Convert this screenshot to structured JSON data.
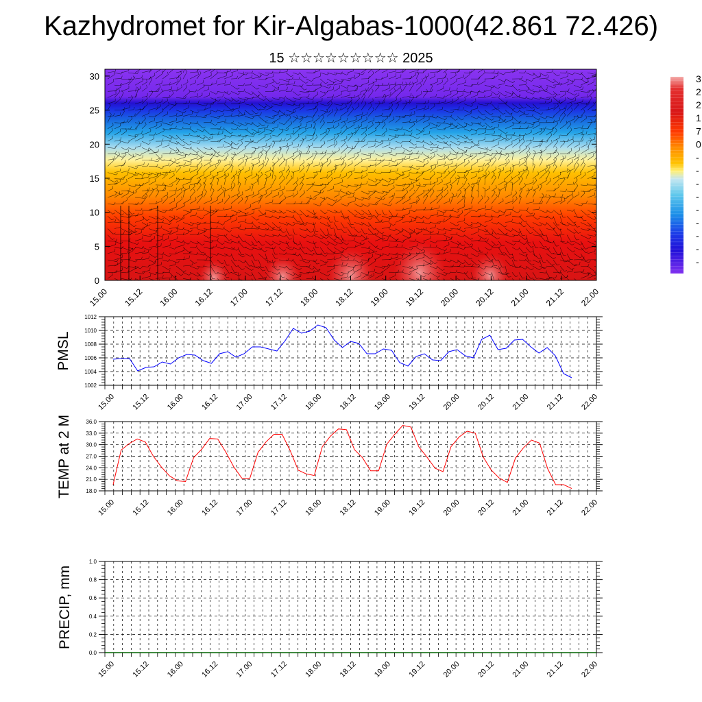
{
  "title": "Kazhydromet for Kir-Algabas-1000(42.861 72.426)",
  "subtitle": "15 ☆☆☆☆☆☆☆☆☆ 2025",
  "colors": {
    "pmsl_line": "#0000ff",
    "temp_line": "#ff0000",
    "precip_line": "#006400",
    "grid": "#000000"
  },
  "chart_data": [
    {
      "type": "heatmap",
      "name": "cross-section",
      "x_tick_labels": [
        "15.00",
        "15.12",
        "16.00",
        "16.12",
        "17.00",
        "17.12",
        "18.00",
        "18.12",
        "19.00",
        "19.12",
        "20.00",
        "20.12",
        "21.00",
        "21.12",
        "22.00"
      ],
      "y_ticks": [
        0,
        5,
        10,
        15,
        20,
        25,
        30
      ],
      "ylim": [
        0,
        31
      ],
      "colorbar_labels": [
        "3",
        "2",
        "2",
        "1",
        "7",
        "0",
        "-",
        "-",
        "-",
        "-",
        "-",
        "-",
        "-",
        "-",
        "-"
      ],
      "colorbar_colors": [
        "#f4aaa8",
        "#e43030",
        "#d61818",
        "#e80e0e",
        "#ff3a00",
        "#ff7a00",
        "#ffb300",
        "#fff07a",
        "#c4e6f0",
        "#5fc8ec",
        "#1aa0e8",
        "#1466e0",
        "#1f2ee8",
        "#2010d8",
        "#6a20e8",
        "#8030f0"
      ],
      "wind_barbs": true
    },
    {
      "type": "line",
      "ylabel": "PMSL",
      "x_tick_labels": [
        "15.00",
        "15.12",
        "16.00",
        "16.12",
        "17.00",
        "17.12",
        "18.00",
        "18.12",
        "19.00",
        "19.12",
        "20.00",
        "20.12",
        "21.00",
        "21.12",
        "22.00"
      ],
      "y_ticks": [
        "1002",
        "1004",
        "1006",
        "1008",
        "1010",
        "1012"
      ],
      "ylim": [
        1002,
        1012
      ],
      "series": [
        {
          "values": [
            1005.8,
            1005.9,
            1005.9,
            1004.1,
            1004.6,
            1004.7,
            1005.4,
            1005.1,
            1006.0,
            1006.5,
            1006.4,
            1005.6,
            1005.2,
            1006.6,
            1006.9,
            1006.1,
            1006.6,
            1007.6,
            1007.6,
            1007.3,
            1007.0,
            1008.5,
            1010.3,
            1009.6,
            1009.9,
            1010.8,
            1010.4,
            1008.6,
            1007.5,
            1008.4,
            1008.1,
            1006.6,
            1006.6,
            1007.3,
            1007.1,
            1005.3,
            1004.8,
            1006.2,
            1006.6,
            1005.7,
            1005.6,
            1006.9,
            1007.2,
            1006.3,
            1006.0,
            1008.7,
            1009.3,
            1007.2,
            1007.4,
            1008.6,
            1008.7,
            1007.6,
            1006.7,
            1007.5,
            1006.3,
            1003.7,
            1003.1
          ]
        }
      ]
    },
    {
      "type": "line",
      "ylabel": "TEMP at 2 M",
      "x_tick_labels": [
        "15.00",
        "15.12",
        "16.00",
        "16.12",
        "17.00",
        "17.12",
        "18.00",
        "18.12",
        "19.00",
        "19.12",
        "20.00",
        "20.12",
        "21.00",
        "21.12",
        "22.00"
      ],
      "y_ticks": [
        "18.0",
        "21.0",
        "24.0",
        "27.0",
        "30.0",
        "33.0",
        "36.0"
      ],
      "ylim": [
        18,
        36
      ],
      "series": [
        {
          "values": [
            19.6,
            28.6,
            30.3,
            31.5,
            30.7,
            27.0,
            24.2,
            21.9,
            20.6,
            20.4,
            26.6,
            28.8,
            31.6,
            31.5,
            28.1,
            24.2,
            21.3,
            21.3,
            28.0,
            30.7,
            32.7,
            32.7,
            28.5,
            23.4,
            22.4,
            22.0,
            29.5,
            32.2,
            34.1,
            33.9,
            28.7,
            26.6,
            23.2,
            23.2,
            30.1,
            32.7,
            35.0,
            34.6,
            29.4,
            26.8,
            23.9,
            23.0,
            29.5,
            32.0,
            33.5,
            33.0,
            26.8,
            23.4,
            21.3,
            20.2,
            26.5,
            29.2,
            31.2,
            30.4,
            23.8,
            19.6,
            19.6,
            18.6
          ]
        }
      ]
    },
    {
      "type": "line",
      "ylabel": "PRECIP, mm",
      "x_tick_labels": [
        "15.00",
        "15.12",
        "16.00",
        "16.12",
        "17.00",
        "17.12",
        "18.00",
        "18.12",
        "19.00",
        "19.12",
        "20.00",
        "20.12",
        "21.00",
        "21.12",
        "22.00"
      ],
      "y_ticks": [
        "0.0",
        "0.2",
        "0.4",
        "0.6",
        "0.8",
        "1.0"
      ],
      "ylim": [
        0,
        1
      ],
      "series": [
        {
          "values": [
            0,
            0,
            0,
            0,
            0,
            0,
            0,
            0,
            0,
            0,
            0,
            0,
            0,
            0,
            0,
            0,
            0,
            0,
            0,
            0,
            0,
            0,
            0,
            0,
            0,
            0,
            0,
            0,
            0,
            0,
            0,
            0,
            0,
            0,
            0,
            0,
            0,
            0,
            0,
            0,
            0,
            0,
            0,
            0,
            0,
            0,
            0,
            0,
            0,
            0,
            0,
            0,
            0,
            0,
            0,
            0,
            0
          ]
        }
      ]
    }
  ]
}
